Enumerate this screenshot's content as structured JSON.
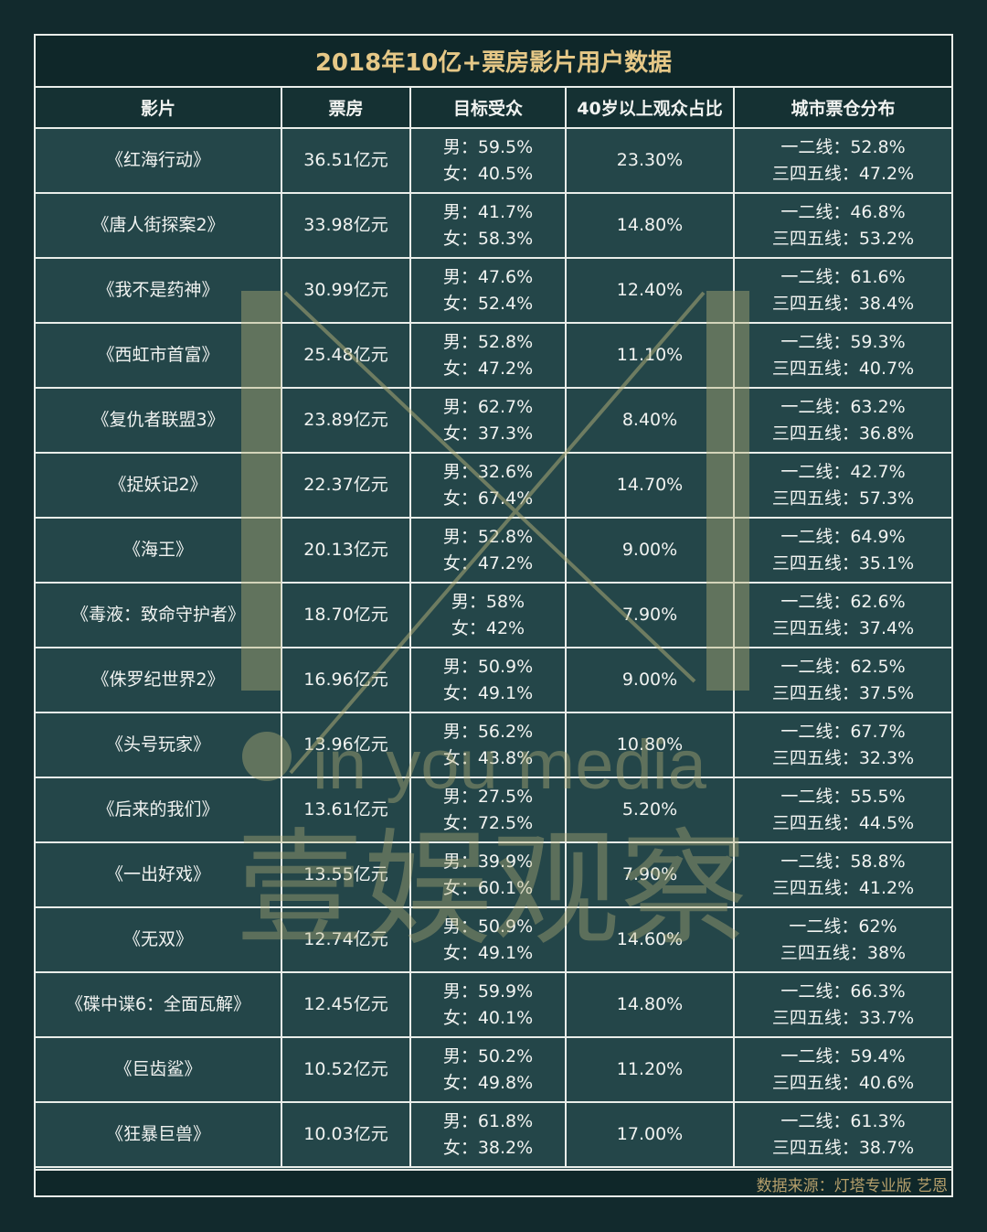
{
  "title": "2018年10亿+票房影片用户数据",
  "headers": [
    "影片",
    "票房",
    "目标受众",
    "40岁以上观众占比",
    "城市票仓分布"
  ],
  "rows": [
    {
      "film": "《红海行动》",
      "box": "36.51亿元",
      "male": "男：59.5%",
      "female": "女：40.5%",
      "over40": "23.30%",
      "tier12": "一二线：52.8%",
      "tier345": "三四五线：47.2%"
    },
    {
      "film": "《唐人街探案2》",
      "box": "33.98亿元",
      "male": "男：41.7%",
      "female": "女：58.3%",
      "over40": "14.80%",
      "tier12": "一二线：46.8%",
      "tier345": "三四五线：53.2%"
    },
    {
      "film": "《我不是药神》",
      "box": "30.99亿元",
      "male": "男：47.6%",
      "female": "女：52.4%",
      "over40": "12.40%",
      "tier12": "一二线：61.6%",
      "tier345": "三四五线：38.4%"
    },
    {
      "film": "《西虹市首富》",
      "box": "25.48亿元",
      "male": "男：52.8%",
      "female": "女：47.2%",
      "over40": "11.10%",
      "tier12": "一二线：59.3%",
      "tier345": "三四五线：40.7%"
    },
    {
      "film": "《复仇者联盟3》",
      "box": "23.89亿元",
      "male": "男：62.7%",
      "female": "女：37.3%",
      "over40": "8.40%",
      "tier12": "一二线：63.2%",
      "tier345": "三四五线：36.8%"
    },
    {
      "film": "《捉妖记2》",
      "box": "22.37亿元",
      "male": "男：32.6%",
      "female": "女：67.4%",
      "over40": "14.70%",
      "tier12": "一二线：42.7%",
      "tier345": "三四五线：57.3%"
    },
    {
      "film": "《海王》",
      "box": "20.13亿元",
      "male": "男：52.8%",
      "female": "女：47.2%",
      "over40": "9.00%",
      "tier12": "一二线：64.9%",
      "tier345": "三四五线：35.1%"
    },
    {
      "film": "《毒液：致命守护者》",
      "box": "18.70亿元",
      "male": "男：58%",
      "female": "女：42%",
      "over40": "7.90%",
      "tier12": "一二线：62.6%",
      "tier345": "三四五线：37.4%"
    },
    {
      "film": "《侏罗纪世界2》",
      "box": "16.96亿元",
      "male": "男：50.9%",
      "female": "女：49.1%",
      "over40": "9.00%",
      "tier12": "一二线：62.5%",
      "tier345": "三四五线：37.5%"
    },
    {
      "film": "《头号玩家》",
      "box": "13.96亿元",
      "male": "男：56.2%",
      "female": "女：43.8%",
      "over40": "10.80%",
      "tier12": "一二线：67.7%",
      "tier345": "三四五线：32.3%"
    },
    {
      "film": "《后来的我们》",
      "box": "13.61亿元",
      "male": "男：27.5%",
      "female": "女：72.5%",
      "over40": "5.20%",
      "tier12": "一二线：55.5%",
      "tier345": "三四五线：44.5%"
    },
    {
      "film": "《一出好戏》",
      "box": "13.55亿元",
      "male": "男：39.9%",
      "female": "女：60.1%",
      "over40": "7.90%",
      "tier12": "一二线：58.8%",
      "tier345": "三四五线：41.2%"
    },
    {
      "film": "《无双》",
      "box": "12.74亿元",
      "male": "男：50.9%",
      "female": "女：49.1%",
      "over40": "14.60%",
      "tier12": "一二线：62%",
      "tier345": "三四五线：38%"
    },
    {
      "film": "《碟中谍6：全面瓦解》",
      "box": "12.45亿元",
      "male": "男：59.9%",
      "female": "女：40.1%",
      "over40": "14.80%",
      "tier12": "一二线：66.3%",
      "tier345": "三四五线：33.7%"
    },
    {
      "film": "《巨齿鲨》",
      "box": "10.52亿元",
      "male": "男：50.2%",
      "female": "女：49.8%",
      "over40": "11.20%",
      "tier12": "一二线：59.4%",
      "tier345": "三四五线：40.6%"
    },
    {
      "film": "《狂暴巨兽》",
      "box": "10.03亿元",
      "male": "男：61.8%",
      "female": "女：38.2%",
      "over40": "17.00%",
      "tier12": "一二线：61.3%",
      "tier345": "三四五线：38.7%"
    }
  ],
  "footer": {
    "source": "数据来源：灯塔专业版 艺恩"
  },
  "watermark": {
    "latin": "in you media",
    "chinese": "壹娱观察"
  },
  "colors": {
    "background": "#122a2d",
    "table": "#244649",
    "header": "#153133",
    "title_text": "#e6c887",
    "source_text": "#b59f6b",
    "watermark": "#b8b27a"
  }
}
